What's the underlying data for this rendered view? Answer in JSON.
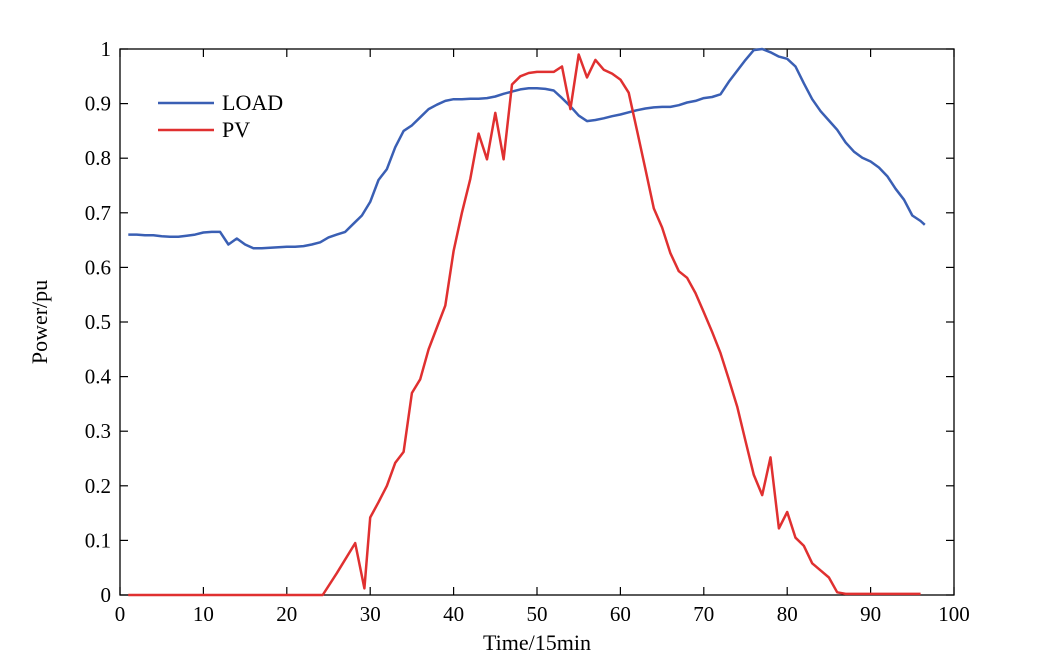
{
  "chart_data": {
    "type": "line",
    "title": "",
    "xlabel": "Time/15min",
    "ylabel": "Power/pu",
    "xlim": [
      0,
      100
    ],
    "ylim": [
      0,
      1
    ],
    "grid": false,
    "legend_position": "top-left",
    "x_ticks": [
      "0",
      "10",
      "20",
      "30",
      "40",
      "50",
      "60",
      "70",
      "80",
      "90",
      "100"
    ],
    "y_ticks": [
      "0",
      "0.1",
      "0.2",
      "0.3",
      "0.4",
      "0.5",
      "0.6",
      "0.7",
      "0.8",
      "0.9",
      "1"
    ],
    "x_tick_values": [
      0,
      10,
      20,
      30,
      40,
      50,
      60,
      70,
      80,
      90,
      100
    ],
    "y_tick_values": [
      0,
      0.1,
      0.2,
      0.3,
      0.4,
      0.5,
      0.6,
      0.7,
      0.8,
      0.9,
      1
    ],
    "series": [
      {
        "name": "LOAD",
        "color": "#3a5fb4",
        "points": [
          [
            1,
            0.66
          ],
          [
            2,
            0.66
          ],
          [
            3,
            0.659
          ],
          [
            4,
            0.659
          ],
          [
            5,
            0.657
          ],
          [
            6,
            0.656
          ],
          [
            7,
            0.656
          ],
          [
            8,
            0.658
          ],
          [
            9,
            0.66
          ],
          [
            10,
            0.664
          ],
          [
            11,
            0.665
          ],
          [
            12,
            0.665
          ],
          [
            13,
            0.642
          ],
          [
            14,
            0.653
          ],
          [
            15,
            0.642
          ],
          [
            16,
            0.635
          ],
          [
            17,
            0.635
          ],
          [
            18,
            0.636
          ],
          [
            19,
            0.637
          ],
          [
            20,
            0.638
          ],
          [
            21,
            0.638
          ],
          [
            22,
            0.639
          ],
          [
            23,
            0.642
          ],
          [
            24,
            0.646
          ],
          [
            25,
            0.655
          ],
          [
            26,
            0.66
          ],
          [
            27,
            0.665
          ],
          [
            28,
            0.68
          ],
          [
            29,
            0.695
          ],
          [
            30,
            0.72
          ],
          [
            31,
            0.76
          ],
          [
            32,
            0.78
          ],
          [
            33,
            0.82
          ],
          [
            34,
            0.85
          ],
          [
            35,
            0.86
          ],
          [
            36,
            0.875
          ],
          [
            37,
            0.89
          ],
          [
            38,
            0.898
          ],
          [
            39,
            0.905
          ],
          [
            40,
            0.908
          ],
          [
            41,
            0.908
          ],
          [
            42,
            0.909
          ],
          [
            43,
            0.909
          ],
          [
            44,
            0.91
          ],
          [
            45,
            0.913
          ],
          [
            46,
            0.918
          ],
          [
            47,
            0.922
          ],
          [
            48,
            0.926
          ],
          [
            49,
            0.928
          ],
          [
            50,
            0.928
          ],
          [
            51,
            0.927
          ],
          [
            52,
            0.924
          ],
          [
            53,
            0.91
          ],
          [
            54,
            0.895
          ],
          [
            55,
            0.878
          ],
          [
            56,
            0.868
          ],
          [
            57,
            0.87
          ],
          [
            58,
            0.873
          ],
          [
            59,
            0.877
          ],
          [
            60,
            0.88
          ],
          [
            61,
            0.884
          ],
          [
            62,
            0.888
          ],
          [
            63,
            0.891
          ],
          [
            64,
            0.893
          ],
          [
            65,
            0.894
          ],
          [
            66,
            0.894
          ],
          [
            67,
            0.897
          ],
          [
            68,
            0.902
          ],
          [
            69,
            0.905
          ],
          [
            70,
            0.91
          ],
          [
            71,
            0.912
          ],
          [
            72,
            0.917
          ],
          [
            73,
            0.94
          ],
          [
            74,
            0.96
          ],
          [
            75,
            0.98
          ],
          [
            76,
            0.998
          ],
          [
            77,
            1.0
          ],
          [
            78,
            0.994
          ],
          [
            79,
            0.986
          ],
          [
            80,
            0.982
          ],
          [
            81,
            0.968
          ],
          [
            82,
            0.937
          ],
          [
            83,
            0.908
          ],
          [
            84,
            0.886
          ],
          [
            85,
            0.869
          ],
          [
            86,
            0.852
          ],
          [
            87,
            0.829
          ],
          [
            88,
            0.812
          ],
          [
            89,
            0.801
          ],
          [
            90,
            0.794
          ],
          [
            91,
            0.783
          ],
          [
            92,
            0.767
          ],
          [
            93,
            0.744
          ],
          [
            94,
            0.724
          ],
          [
            95,
            0.695
          ],
          [
            96,
            0.685
          ],
          [
            96.5,
            0.678
          ]
        ]
      },
      {
        "name": "PV",
        "color": "#e03030",
        "points": [
          [
            1,
            0
          ],
          [
            23,
            0
          ],
          [
            24.3,
            0
          ],
          [
            26,
            0.04
          ],
          [
            28.2,
            0.095
          ],
          [
            29.3,
            0.012
          ],
          [
            30,
            0.142
          ],
          [
            31,
            0.17
          ],
          [
            32,
            0.2
          ],
          [
            33,
            0.242
          ],
          [
            34,
            0.262
          ],
          [
            35,
            0.37
          ],
          [
            36,
            0.395
          ],
          [
            37,
            0.45
          ],
          [
            38,
            0.49
          ],
          [
            39,
            0.53
          ],
          [
            40,
            0.63
          ],
          [
            41,
            0.7
          ],
          [
            42,
            0.762
          ],
          [
            43,
            0.845
          ],
          [
            44,
            0.798
          ],
          [
            45,
            0.883
          ],
          [
            46,
            0.798
          ],
          [
            47,
            0.935
          ],
          [
            48,
            0.95
          ],
          [
            49,
            0.956
          ],
          [
            50,
            0.958
          ],
          [
            51,
            0.958
          ],
          [
            52,
            0.958
          ],
          [
            53,
            0.968
          ],
          [
            54,
            0.89
          ],
          [
            55,
            0.99
          ],
          [
            56,
            0.948
          ],
          [
            57,
            0.98
          ],
          [
            58,
            0.962
          ],
          [
            59,
            0.955
          ],
          [
            60,
            0.944
          ],
          [
            61,
            0.92
          ],
          [
            62,
            0.85
          ],
          [
            63,
            0.78
          ],
          [
            64,
            0.708
          ],
          [
            65,
            0.673
          ],
          [
            66,
            0.626
          ],
          [
            67,
            0.593
          ],
          [
            68,
            0.581
          ],
          [
            69,
            0.553
          ],
          [
            70,
            0.518
          ],
          [
            71,
            0.482
          ],
          [
            72,
            0.443
          ],
          [
            73,
            0.395
          ],
          [
            74,
            0.345
          ],
          [
            75,
            0.282
          ],
          [
            76,
            0.22
          ],
          [
            77,
            0.183
          ],
          [
            78,
            0.252
          ],
          [
            79,
            0.122
          ],
          [
            80,
            0.152
          ],
          [
            81,
            0.105
          ],
          [
            82,
            0.09
          ],
          [
            83,
            0.058
          ],
          [
            84,
            0.045
          ],
          [
            85,
            0.032
          ],
          [
            86,
            0.005
          ],
          [
            87,
            0.002
          ],
          [
            96,
            0.002
          ]
        ]
      }
    ]
  }
}
